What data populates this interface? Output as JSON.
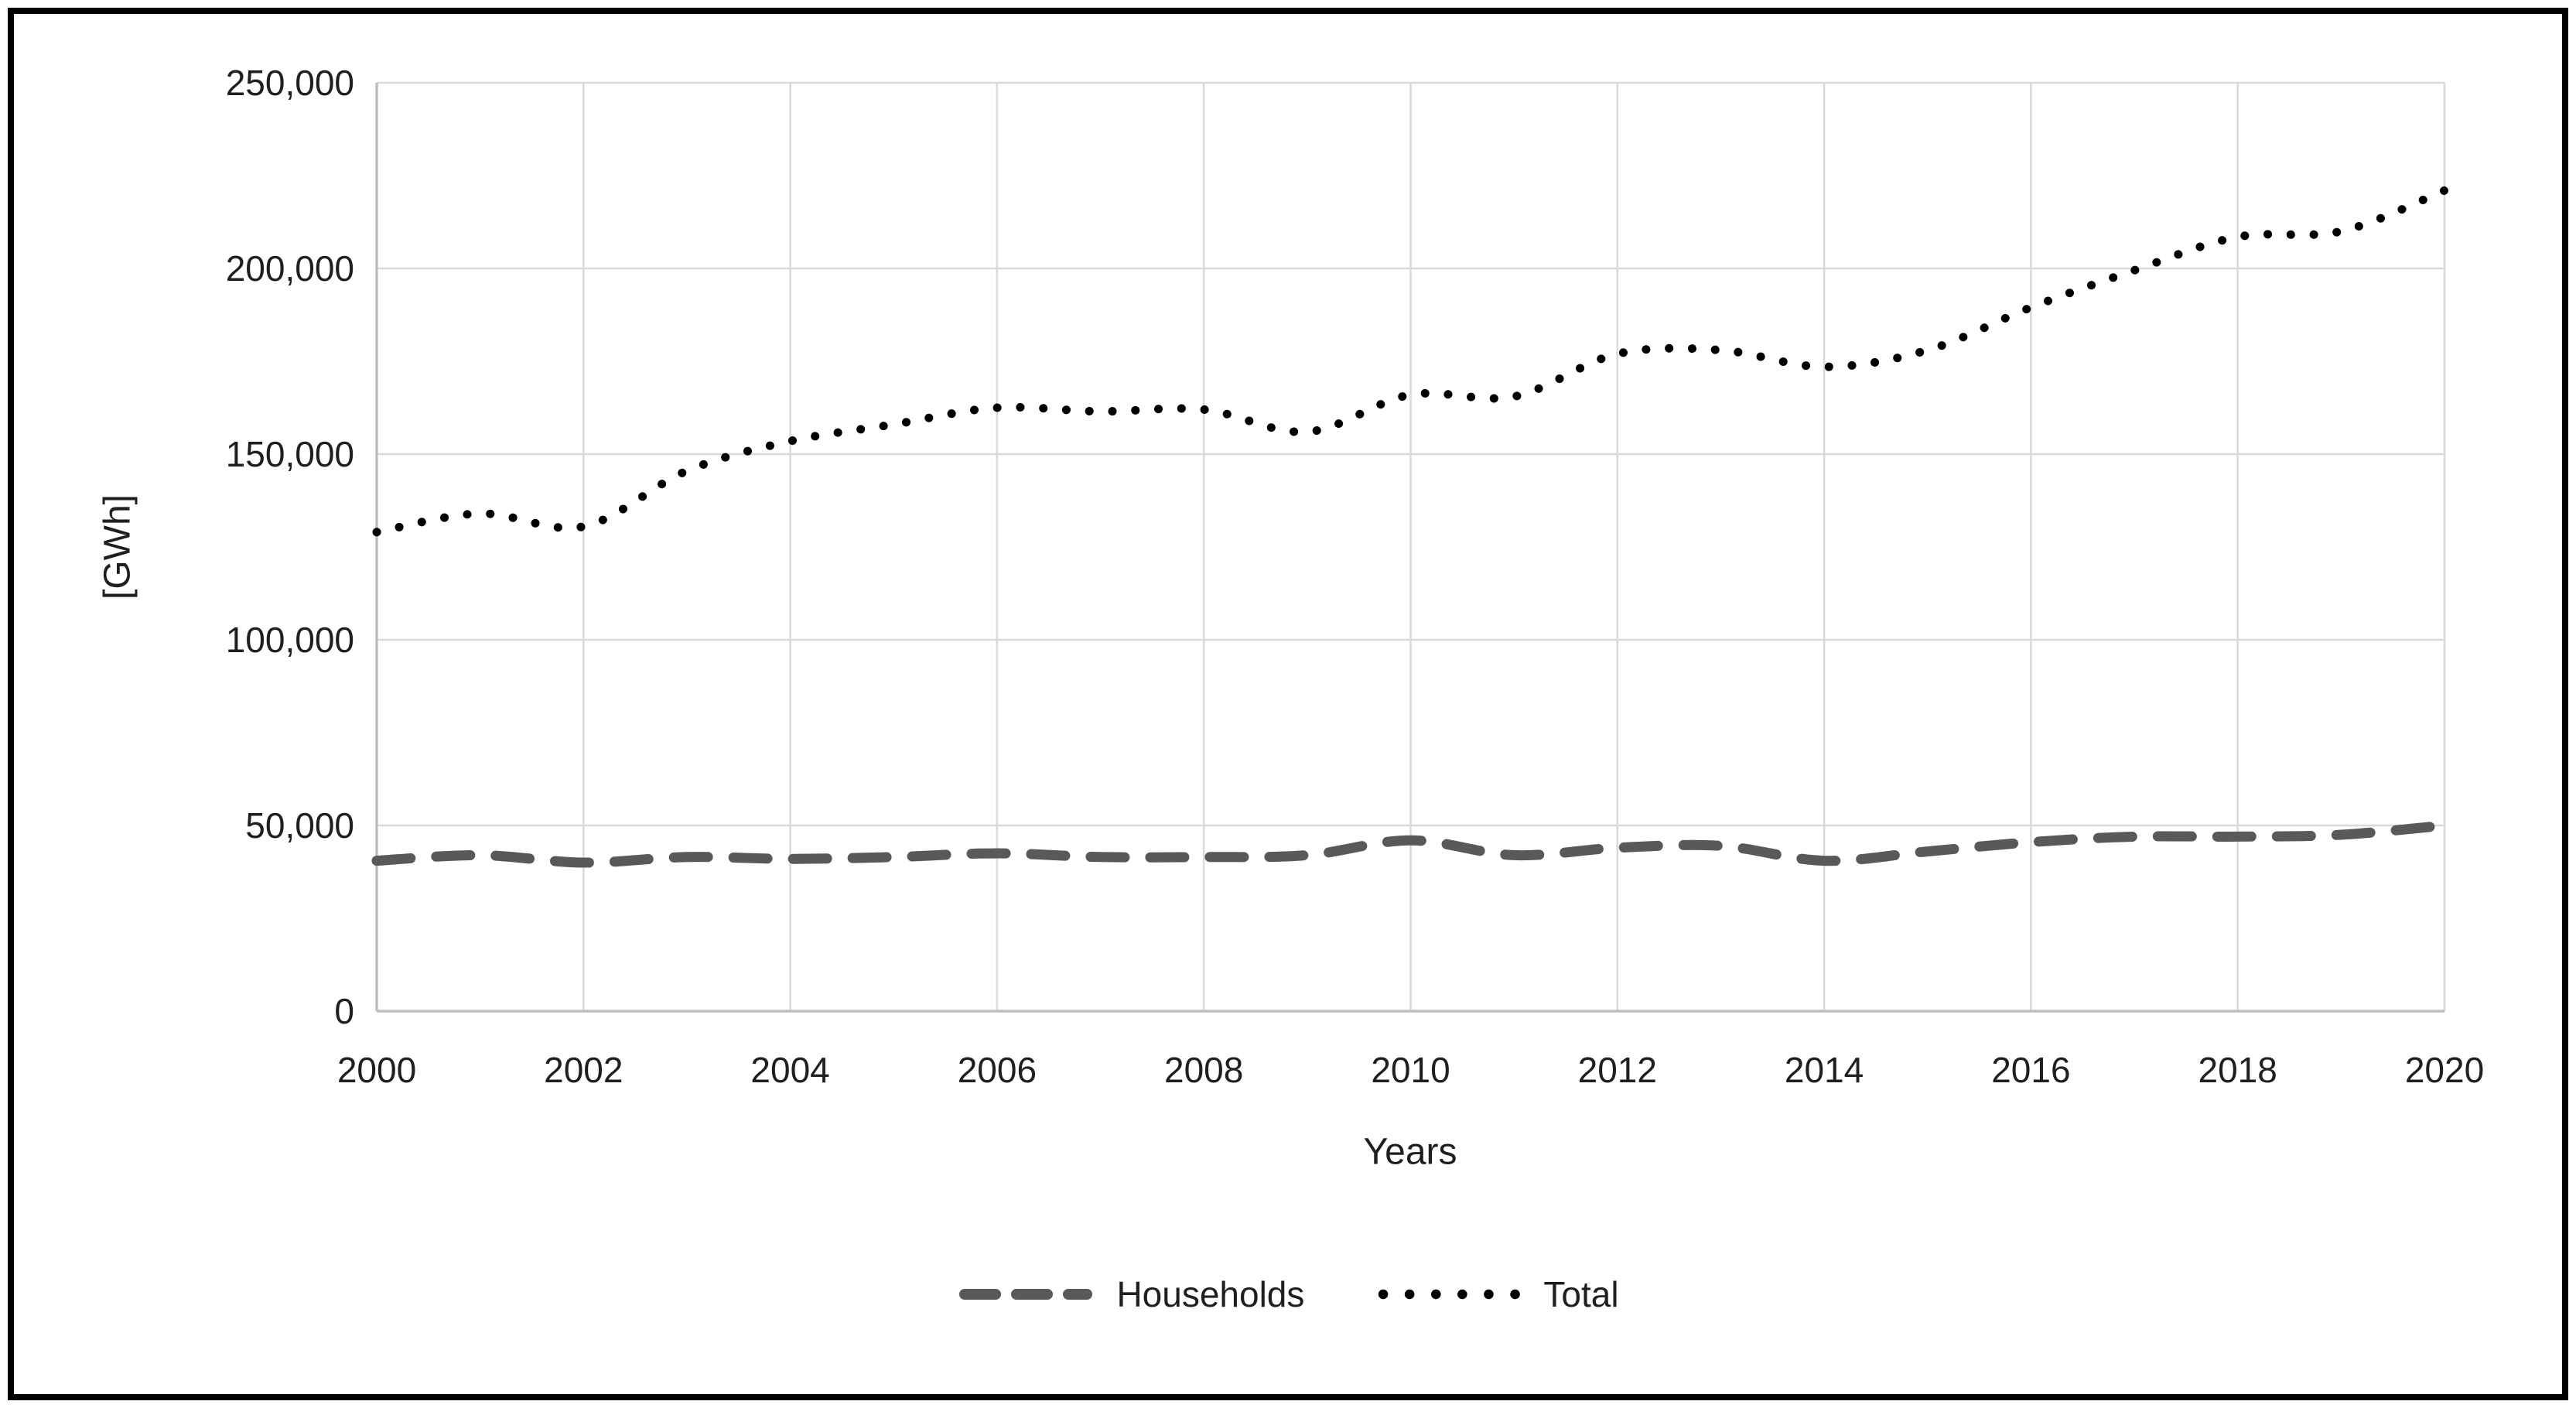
{
  "chart_data": {
    "type": "line",
    "title": "",
    "x": [
      2000,
      2001,
      2002,
      2003,
      2004,
      2005,
      2006,
      2007,
      2008,
      2009,
      2010,
      2011,
      2012,
      2013,
      2014,
      2015,
      2016,
      2017,
      2018,
      2019,
      2020
    ],
    "series": [
      {
        "name": "Households",
        "style": "dashed",
        "color": "#595959",
        "values": [
          40500,
          42000,
          40000,
          41500,
          41000,
          41500,
          42500,
          41500,
          41500,
          42000,
          46000,
          42000,
          44000,
          44500,
          40500,
          43000,
          45500,
          47000,
          47000,
          47500,
          50000
        ]
      },
      {
        "name": "Total",
        "style": "dotted",
        "color": "#000000",
        "values": [
          129000,
          134000,
          130500,
          145500,
          153500,
          158000,
          162500,
          161500,
          162000,
          156000,
          166000,
          165500,
          177000,
          178000,
          173500,
          178000,
          189500,
          199500,
          208500,
          210000,
          221000
        ]
      }
    ],
    "xlabel": "Years",
    "ylabel": "[GWh]",
    "ylim": [
      0,
      250000
    ],
    "xlim": [
      2000,
      2020
    ],
    "yticks": [
      0,
      50000,
      100000,
      150000,
      200000,
      250000
    ],
    "ytick_labels": [
      "0",
      "50,000",
      "100,000",
      "150,000",
      "200,000",
      "250,000"
    ],
    "xticks": [
      2000,
      2002,
      2004,
      2006,
      2008,
      2010,
      2012,
      2014,
      2016,
      2018,
      2020
    ],
    "grid": "both",
    "legend_position": "bottom",
    "line_smoothing": true
  },
  "colors": {
    "gridline": "#d9d9d9",
    "axis_line": "#bfbfbf",
    "text": "#1f1f1f",
    "frame_border": "#000000",
    "background": "#ffffff"
  },
  "legend": {
    "items": [
      {
        "label": "Households",
        "swatch": "dash-swatch"
      },
      {
        "label": "Total",
        "swatch": "dot-swatch"
      }
    ]
  }
}
